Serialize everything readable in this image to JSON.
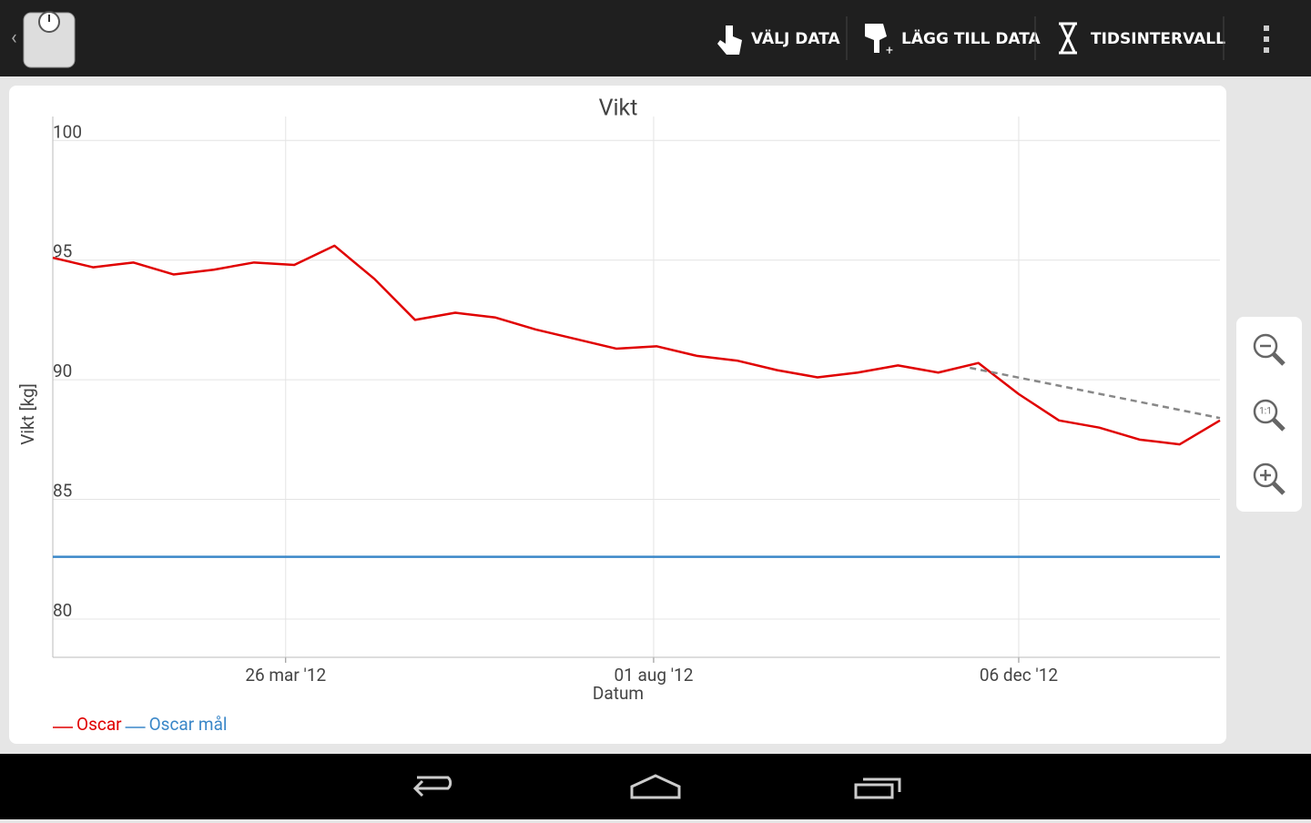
{
  "toolbar": {
    "actions": [
      "VÄLJ DATA",
      "LÄGG TILL DATA",
      "TIDSINTERVALL"
    ]
  },
  "zoom": {
    "reset_label": "1:1"
  },
  "chart_data": {
    "type": "line",
    "title": "Vikt",
    "x_label": "Datum",
    "y_label": "Vikt [kg]",
    "xlim": [
      "2012-01-05",
      "2013-02-14"
    ],
    "xticks": [
      {
        "value": "2012-03-26",
        "label": "26 mar '12"
      },
      {
        "value": "2012-08-01",
        "label": "01 aug '12"
      },
      {
        "value": "2012-12-06",
        "label": "06 dec '12"
      }
    ],
    "ylim": [
      78.4,
      101
    ],
    "yticks": [
      80,
      85,
      90,
      95,
      100
    ],
    "grid": true,
    "legend": "bottom-left",
    "series": [
      {
        "name": "Oscar",
        "color": "#e00000",
        "x": [
          "2012-01-05",
          "2012-01-19",
          "2012-02-02",
          "2012-02-16",
          "2012-03-01",
          "2012-03-15",
          "2012-03-29",
          "2012-04-12",
          "2012-04-26",
          "2012-05-10",
          "2012-05-24",
          "2012-06-07",
          "2012-06-21",
          "2012-07-05",
          "2012-07-19",
          "2012-08-02",
          "2012-08-16",
          "2012-08-30",
          "2012-09-13",
          "2012-09-27",
          "2012-10-11",
          "2012-10-25",
          "2012-11-08",
          "2012-11-22",
          "2012-12-06",
          "2012-12-20",
          "2013-01-03",
          "2013-01-17",
          "2013-01-31",
          "2013-02-14"
        ],
        "values": [
          95.1,
          94.7,
          94.9,
          94.4,
          94.6,
          94.9,
          94.8,
          95.6,
          94.2,
          92.5,
          92.8,
          92.6,
          92.1,
          91.7,
          91.3,
          91.4,
          91.0,
          90.8,
          90.4,
          90.1,
          90.3,
          90.6,
          90.3,
          90.7,
          89.4,
          88.3,
          88.0,
          87.5,
          87.3,
          88.3
        ]
      },
      {
        "name": "Oscar mål",
        "color": "#3a87c8",
        "x": [
          "2012-01-05",
          "2013-02-14"
        ],
        "values": [
          82.6,
          82.6
        ]
      }
    ],
    "trend": {
      "color": "#888888",
      "x": [
        "2012-11-19",
        "2013-02-14"
      ],
      "values": [
        90.5,
        88.4
      ]
    }
  }
}
